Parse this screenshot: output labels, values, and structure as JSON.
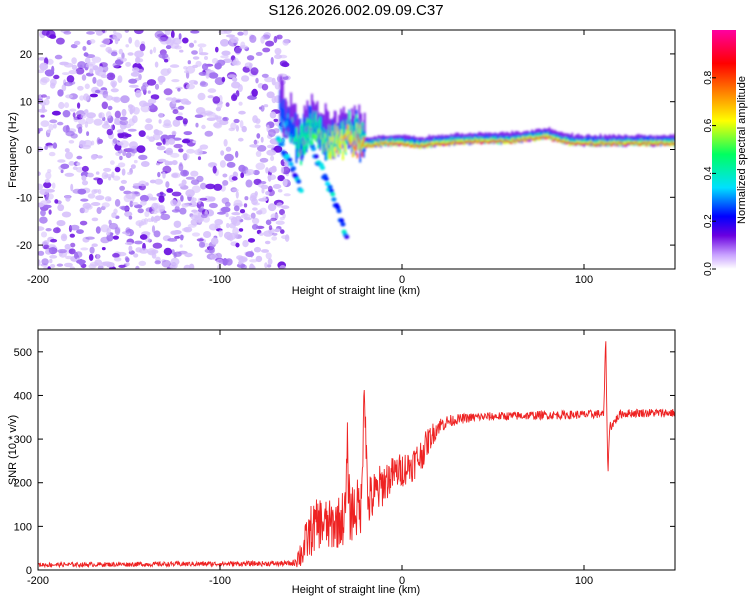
{
  "title": "S126.2026.002.09.09.C37",
  "chart_data": [
    {
      "type": "heatmap",
      "name": "spectrogram",
      "xlabel": "Height of straight line (km)",
      "ylabel": "Frequency (Hz)",
      "xlim": [
        -200,
        150
      ],
      "ylim": [
        -25,
        25
      ],
      "xticks": [
        -200,
        -100,
        0,
        100
      ],
      "yticks": [
        -20,
        -10,
        0,
        10,
        20
      ],
      "colorbar": {
        "label": "Normalized spectral amplitude",
        "range": [
          0,
          1
        ],
        "ticks": [
          "0.0",
          "0.2",
          "0.4",
          "0.6",
          "0.8"
        ],
        "colors": [
          "#ffffff",
          "#c8a0ff",
          "#6a00e0",
          "#0000ff",
          "#00e0ff",
          "#00ff60",
          "#ffff00",
          "#ff8000",
          "#ff0000",
          "#ff00a0"
        ]
      },
      "noise_region_x": [
        -200,
        -67
      ],
      "signal_track": {
        "x": [
          -67,
          -60,
          -55,
          -50,
          -45,
          -40,
          -35,
          -30,
          -25,
          -20,
          -10,
          0,
          10,
          20,
          40,
          60,
          70,
          80,
          88,
          95,
          110,
          130,
          150
        ],
        "freq": [
          6,
          2,
          0,
          4,
          2,
          0,
          1,
          2,
          1,
          0.5,
          1,
          1,
          0.5,
          1,
          1.5,
          1.5,
          2,
          2.5,
          1.5,
          1,
          1,
          1,
          1
        ],
        "amplitude": [
          0.3,
          0.4,
          0.45,
          0.5,
          0.55,
          0.6,
          0.65,
          0.7,
          0.75,
          0.8,
          0.8,
          0.85,
          0.85,
          0.85,
          0.85,
          0.9,
          0.9,
          0.9,
          0.85,
          0.85,
          0.85,
          0.85,
          0.85
        ]
      },
      "descending_branches": [
        {
          "x": [
            -68,
            -60,
            -55
          ],
          "freq": [
            2,
            -4,
            -8
          ]
        },
        {
          "x": [
            -50,
            -42,
            -35,
            -30
          ],
          "freq": [
            1,
            -6,
            -13,
            -19
          ]
        }
      ]
    },
    {
      "type": "line",
      "name": "snr",
      "xlabel": "Height of straight line (km)",
      "ylabel": "SNR (10 * v/v)",
      "xlim": [
        -200,
        150
      ],
      "ylim": [
        0,
        550
      ],
      "xticks": [
        -200,
        -100,
        0,
        100
      ],
      "yticks": [
        0,
        100,
        200,
        300,
        400,
        500
      ],
      "color": "#ee2222",
      "envelope": {
        "x": [
          -200,
          -60,
          -55,
          -50,
          -45,
          -40,
          -35,
          -30,
          -25,
          -20,
          -15,
          -10,
          -5,
          0,
          5,
          10,
          15,
          20,
          25,
          30,
          40,
          50,
          60,
          80,
          100,
          110,
          115,
          120,
          130,
          150
        ],
        "y": [
          12,
          15,
          40,
          90,
          110,
          100,
          110,
          130,
          140,
          150,
          170,
          200,
          220,
          230,
          240,
          260,
          300,
          330,
          340,
          345,
          350,
          352,
          353,
          355,
          356,
          358,
          330,
          358,
          360,
          360
        ],
        "noise": [
          5,
          6,
          40,
          60,
          60,
          60,
          60,
          70,
          70,
          60,
          60,
          50,
          40,
          40,
          40,
          40,
          30,
          20,
          15,
          12,
          10,
          10,
          10,
          10,
          10,
          10,
          10,
          10,
          10,
          10
        ]
      },
      "spikes": [
        {
          "x": -30,
          "y": 270
        },
        {
          "x": -21,
          "y": 405
        },
        {
          "x": -20,
          "y": 320
        },
        {
          "x": 112,
          "y": 540
        },
        {
          "x": 113,
          "y": 210
        }
      ]
    }
  ]
}
